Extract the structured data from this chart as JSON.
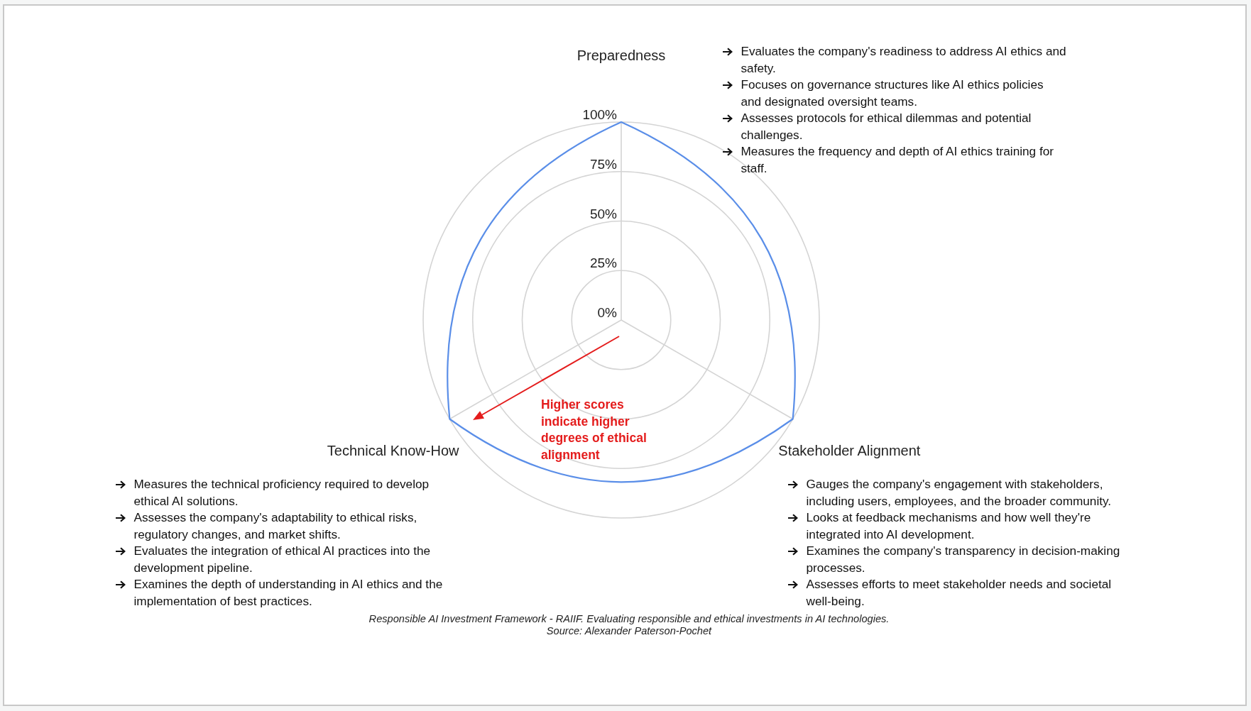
{
  "chart_data": {
    "type": "radar",
    "categories": [
      "Preparedness",
      "Stakeholder Alignment",
      "Technical Know-How"
    ],
    "series": [
      {
        "color": "#5a8ee8",
        "values": [
          100,
          100,
          100
        ]
      }
    ],
    "ylim": [
      0,
      100
    ],
    "yticks": [
      {
        "value": 0,
        "label": "0%"
      },
      {
        "value": 25,
        "label": "25%"
      },
      {
        "value": 50,
        "label": "50%"
      },
      {
        "value": 75,
        "label": "75%"
      },
      {
        "value": 100,
        "label": "100%"
      }
    ],
    "grid": true,
    "legend": false,
    "marker": "none",
    "annotations": [
      "Evaluates the company's readiness to address AI ethics and safety.",
      "Focuses on governance structures like AI ethics policies and designated oversight teams.",
      "Assesses protocols for ethical dilemmas and potential challenges.",
      "Measures the frequency and depth of AI ethics training for staff.",
      "Higher scores indicate higher degrees of ethical alignment",
      "Measures the technical proficiency required to develop ethical AI solutions.",
      "Assesses the company's adaptability to ethical risks, regulatory changes, and market shifts.",
      "Evaluates the integration of ethical AI practices into the development pipeline.",
      "Examines the depth of understanding in AI ethics and the implementation of best practices.",
      "Gauges the company's engagement with stakeholders, including users, employees, and the broader community.",
      "Looks at feedback mechanisms and how well they're integrated into AI development.",
      "Examines the company's transparency in decision-making processes.",
      "Assesses efforts to meet stakeholder needs and societal well-being.",
      "Responsible AI Investment Framework - RAIIF. Evaluating responsible and ethical investments in AI technologies.",
      "Source: Alexander Paterson-Pochet"
    ]
  }
}
